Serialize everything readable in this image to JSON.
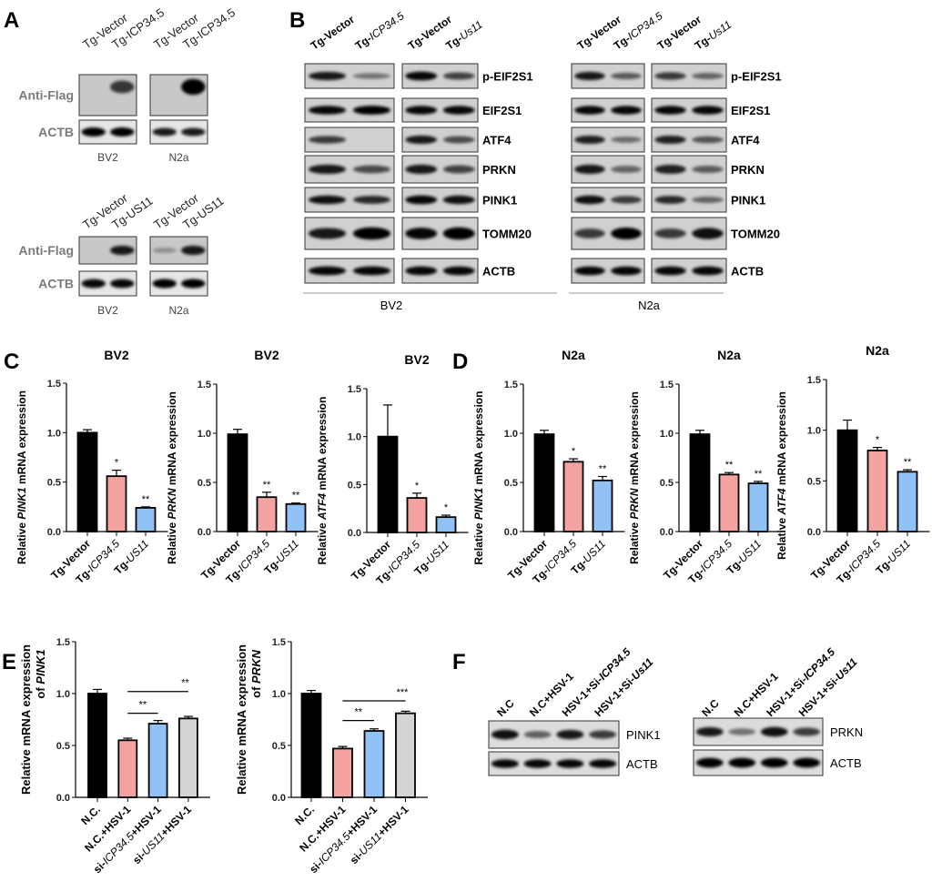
{
  "panel_letters": [
    "A",
    "B",
    "C",
    "D",
    "E",
    "F"
  ],
  "colors": {
    "vector": "#000000",
    "icp34": "#f5a3a0",
    "us11": "#90c2f5",
    "gray": "#d4d4d4",
    "label_gray": "#7a7a7a"
  },
  "panel_a": {
    "groups": [
      {
        "lanes": [
          "Tg-Vector",
          "Tg-ICP34.5"
        ],
        "rows": [
          {
            "label": "Anti-Flag",
            "bv2": [
              0.0,
              0.6
            ],
            "n2a": [
              0.0,
              1.0
            ]
          },
          {
            "label": "ACTB",
            "bv2": [
              1.0,
              1.0
            ],
            "n2a": [
              0.8,
              0.8
            ]
          }
        ],
        "cells": [
          "BV2",
          "N2a"
        ]
      },
      {
        "lanes": [
          "Tg-Vector",
          "Tg-US11"
        ],
        "rows": [
          {
            "label": "Anti-Flag",
            "bv2": [
              0.0,
              0.8
            ],
            "n2a": [
              0.05,
              0.8
            ]
          },
          {
            "label": "ACTB",
            "bv2": [
              0.9,
              0.9
            ],
            "n2a": [
              0.95,
              0.95
            ]
          }
        ],
        "cells": [
          "BV2",
          "N2a"
        ]
      }
    ]
  },
  "panel_b": {
    "lanes_left": [
      "Tg-Vector",
      "Tg-ICP34.5"
    ],
    "lanes_right": [
      "Tg-Vector",
      "Tg-Us11"
    ],
    "rows": [
      "p-EIF2S1",
      "EIF2S1",
      "ATF4",
      "PRKN",
      "PINK1",
      "TOMM20",
      "ACTB"
    ],
    "cells": [
      "BV2",
      "N2a"
    ],
    "band_intensity": {
      "BV2": [
        [
          0.8,
          0.25,
          0.9,
          0.55
        ],
        [
          0.9,
          0.95,
          0.9,
          0.9
        ],
        [
          0.6,
          0.0,
          0.8,
          0.5
        ],
        [
          0.8,
          0.5,
          0.8,
          0.55
        ],
        [
          0.85,
          0.7,
          0.9,
          0.85
        ],
        [
          0.8,
          1.0,
          0.9,
          1.0
        ],
        [
          0.9,
          0.9,
          0.9,
          0.9
        ]
      ],
      "N2a": [
        [
          0.8,
          0.4,
          0.6,
          0.35
        ],
        [
          0.9,
          0.9,
          0.9,
          0.9
        ],
        [
          0.75,
          0.3,
          0.75,
          0.45
        ],
        [
          0.8,
          0.35,
          0.75,
          0.4
        ],
        [
          0.85,
          0.6,
          0.7,
          0.35
        ],
        [
          0.6,
          0.95,
          0.6,
          0.85
        ],
        [
          0.9,
          0.9,
          0.9,
          0.9
        ]
      ]
    }
  },
  "panel_f": {
    "lanes": [
      "N.C",
      "N.C+HSV-1",
      "HSV-1+Si-ICP34.5",
      "HSV-1+Si-Us11"
    ],
    "blots": [
      {
        "rows": [
          {
            "label": "PINK1",
            "bands": [
              0.85,
              0.4,
              0.8,
              0.6
            ]
          },
          {
            "label": "ACTB",
            "bands": [
              0.9,
              0.9,
              0.9,
              0.9
            ]
          }
        ]
      },
      {
        "rows": [
          {
            "label": "PRKN",
            "bands": [
              0.8,
              0.3,
              0.85,
              0.6
            ]
          },
          {
            "label": "ACTB",
            "bands": [
              1.0,
              1.0,
              1.0,
              1.0
            ]
          }
        ]
      }
    ]
  },
  "chart_data": [
    {
      "id": "C1",
      "type": "bar",
      "title": "BV2",
      "ylabel": [
        "Relative ",
        "PINK1",
        " mRNA expression"
      ],
      "ylim": [
        0,
        1.5
      ],
      "yticks": [
        "0.0",
        "0.5",
        "1.0",
        "1.5"
      ],
      "categories": [
        "Tg-Vector",
        "Tg-ICP34.5",
        "Tg-US11"
      ],
      "values": [
        1.0,
        0.56,
        0.24
      ],
      "errors": [
        0.03,
        0.06,
        0.01
      ],
      "significance": [
        "",
        "*",
        "**"
      ],
      "colors": [
        "#000000",
        "#f5a3a0",
        "#90c2f5"
      ]
    },
    {
      "id": "C2",
      "type": "bar",
      "title": "BV2",
      "ylabel": [
        "Relative ",
        "PRKN",
        " mRNA expression"
      ],
      "ylim": [
        0,
        1.5
      ],
      "yticks": [
        "0.0",
        "0.5",
        "1.0",
        "1.5"
      ],
      "categories": [
        "Tg-Vector",
        "Tg-ICP34.5",
        "Tg-US11"
      ],
      "values": [
        0.99,
        0.35,
        0.28
      ],
      "errors": [
        0.05,
        0.05,
        0.01
      ],
      "significance": [
        "",
        "**",
        "**"
      ],
      "colors": [
        "#000000",
        "#f5a3a0",
        "#90c2f5"
      ]
    },
    {
      "id": "C3",
      "type": "bar",
      "title": "BV2",
      "ylabel": [
        "Relative ",
        "ATF4",
        " mRNA expression"
      ],
      "ylim": [
        0,
        1.5
      ],
      "yticks": [
        "0.0",
        "0.5",
        "1.0",
        "1.5"
      ],
      "categories": [
        "Tg-Vector",
        "Tg-ICP34.5",
        "Tg-US11"
      ],
      "values": [
        1.0,
        0.36,
        0.16
      ],
      "errors": [
        0.33,
        0.05,
        0.02
      ],
      "significance": [
        "",
        "*",
        "*"
      ],
      "colors": [
        "#000000",
        "#f5a3a0",
        "#90c2f5"
      ]
    },
    {
      "id": "D1",
      "type": "bar",
      "title": "N2a",
      "ylabel": [
        "Relative ",
        "PINK1",
        " mRNA expression"
      ],
      "ylim": [
        0,
        1.5
      ],
      "yticks": [
        "0.0",
        "0.5",
        "1.0",
        "1.5"
      ],
      "categories": [
        "Tg-Vector",
        "Tg-ICP34.5",
        "Tg-US11"
      ],
      "values": [
        0.99,
        0.71,
        0.52
      ],
      "errors": [
        0.04,
        0.03,
        0.04
      ],
      "significance": [
        "",
        "*",
        "**"
      ],
      "colors": [
        "#000000",
        "#f5a3a0",
        "#90c2f5"
      ]
    },
    {
      "id": "D2",
      "type": "bar",
      "title": "N2a",
      "ylabel": [
        "Relative ",
        "PRKN",
        " mRNA expression"
      ],
      "ylim": [
        0,
        1.5
      ],
      "yticks": [
        "0.0",
        "0.5",
        "1.0",
        "1.5"
      ],
      "categories": [
        "Tg-Vector",
        "Tg-ICP34.5",
        "Tg-US11"
      ],
      "values": [
        0.99,
        0.58,
        0.49
      ],
      "errors": [
        0.04,
        0.02,
        0.02
      ],
      "significance": [
        "",
        "**",
        "**"
      ],
      "colors": [
        "#000000",
        "#f5a3a0",
        "#90c2f5"
      ]
    },
    {
      "id": "D3",
      "type": "bar",
      "title": "N2a",
      "ylabel": [
        "Relative ",
        "ATF4",
        " mRNA expression"
      ],
      "ylim": [
        0,
        1.5
      ],
      "yticks": [
        "0.0",
        "0.5",
        "1.0",
        "1.5"
      ],
      "categories": [
        "Tg-Vector",
        "Tg-ICP34.5",
        "Tg-US11"
      ],
      "values": [
        1.0,
        0.8,
        0.59
      ],
      "errors": [
        0.1,
        0.03,
        0.02
      ],
      "significance": [
        "",
        "*",
        "**"
      ],
      "colors": [
        "#000000",
        "#f5a3a0",
        "#90c2f5"
      ]
    },
    {
      "id": "E1",
      "type": "bar",
      "title": "",
      "ylabel": [
        "Relative mRNA expression",
        "of ",
        "PINK1"
      ],
      "ylim": [
        0,
        1.5
      ],
      "yticks": [
        "0.0",
        "0.5",
        "1.0",
        "1.5"
      ],
      "categories": [
        "N.C.",
        "N.C.+HSV-1",
        "si-ICP34.5+HSV-1",
        "si-US11+HSV-1"
      ],
      "values": [
        1.0,
        0.55,
        0.71,
        0.76
      ],
      "errors": [
        0.04,
        0.02,
        0.03,
        0.02
      ],
      "significance": [
        "",
        "",
        "",
        ""
      ],
      "brackets": [
        {
          "from": 1,
          "to": 2,
          "y": 0.81,
          "label": "**"
        },
        {
          "from": 1,
          "to": 3,
          "y": 1.02,
          "label": "**"
        }
      ],
      "colors": [
        "#000000",
        "#f5a3a0",
        "#90c2f5",
        "#d4d4d4"
      ]
    },
    {
      "id": "E2",
      "type": "bar",
      "title": "",
      "ylabel": [
        "Relative mRNA expression",
        "of ",
        "PRKN"
      ],
      "ylim": [
        0,
        1.5
      ],
      "yticks": [
        "0.0",
        "0.5",
        "1.0",
        "1.5"
      ],
      "categories": [
        "N.C.",
        "N.C.+HSV-1",
        "si-ICP34.5+HSV-1",
        "si-US11+HSV-1"
      ],
      "values": [
        1.0,
        0.47,
        0.64,
        0.81
      ],
      "errors": [
        0.03,
        0.02,
        0.02,
        0.02
      ],
      "significance": [
        "",
        "",
        "",
        ""
      ],
      "brackets": [
        {
          "from": 1,
          "to": 2,
          "y": 0.74,
          "label": "**"
        },
        {
          "from": 1,
          "to": 3,
          "y": 0.93,
          "label": "***"
        }
      ],
      "colors": [
        "#000000",
        "#f5a3a0",
        "#90c2f5",
        "#d4d4d4"
      ]
    }
  ]
}
